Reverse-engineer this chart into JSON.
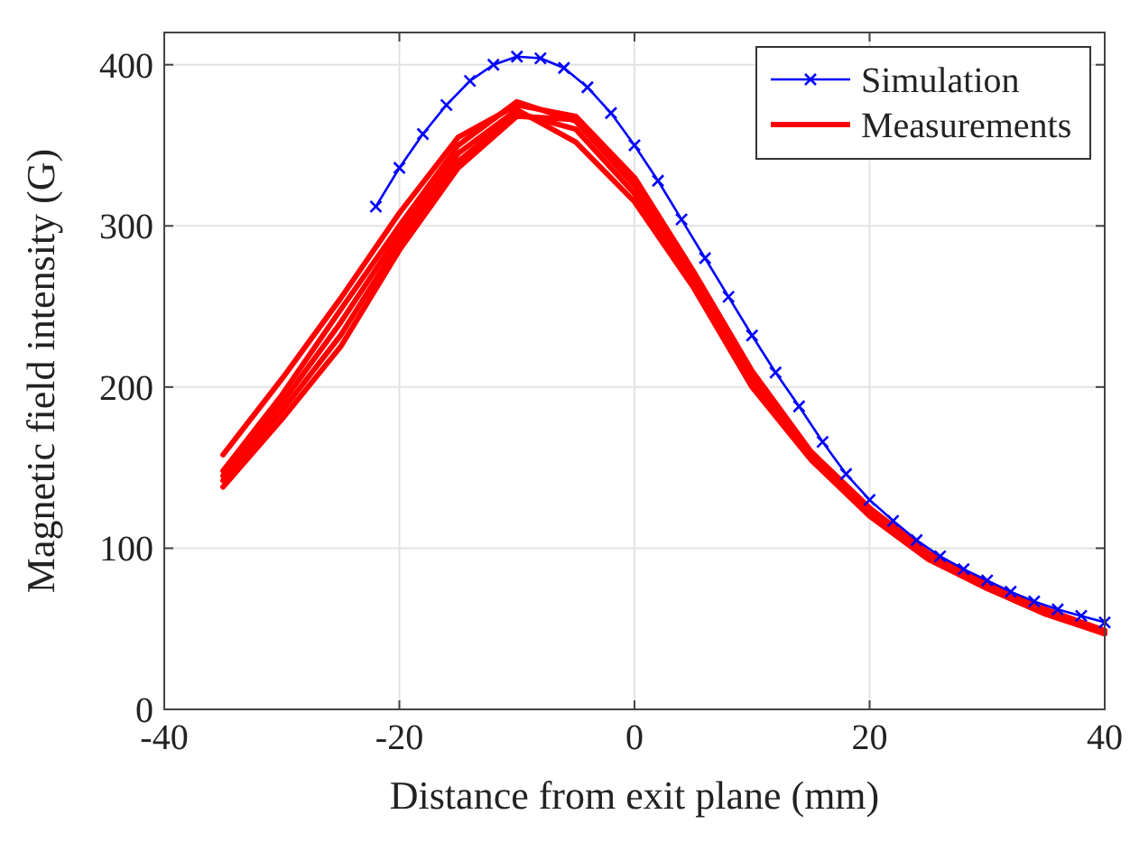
{
  "chart_data": {
    "type": "line",
    "xlabel": "Distance from exit plane (mm)",
    "ylabel": "Magnetic field intensity (G)",
    "xlim": [
      -40,
      40
    ],
    "ylim": [
      0,
      420
    ],
    "xticks": [
      -40,
      -20,
      0,
      20,
      40
    ],
    "yticks": [
      0,
      100,
      200,
      300,
      400
    ],
    "grid": true,
    "legend": "top right",
    "series": [
      {
        "name": "Simulation",
        "color": "#0000ff",
        "marker": "cross",
        "x": [
          -22,
          -20,
          -18,
          -16,
          -14,
          -12,
          -10,
          -8,
          -6,
          -4,
          -2,
          0,
          2,
          4,
          6,
          8,
          10,
          12,
          14,
          16,
          18,
          20,
          22,
          24,
          26,
          28,
          30,
          32,
          34,
          36,
          38,
          40
        ],
        "values": [
          312,
          336,
          357,
          375,
          390,
          400,
          405,
          404,
          398,
          386,
          370,
          350,
          328,
          304,
          280,
          256,
          232,
          209,
          188,
          166,
          146,
          130,
          117,
          105,
          95,
          87,
          80,
          73,
          67,
          62,
          58,
          54
        ]
      },
      {
        "name": "Measurements",
        "color": "#ff0000",
        "marker": "none",
        "x": [
          -35,
          -30,
          -25,
          -20,
          -15,
          -10,
          -5,
          0,
          5,
          10,
          15,
          20,
          25,
          30,
          35,
          40
        ],
        "values": [
          158,
          205,
          255,
          308,
          355,
          375,
          368,
          330,
          272,
          210,
          160,
          125,
          97,
          78,
          62,
          49
        ]
      },
      {
        "color": "#ff0000",
        "marker": "none",
        "x": [
          -35,
          -30,
          -25,
          -20,
          -15,
          -10,
          -5,
          0,
          5,
          10,
          15,
          20,
          25,
          30,
          35,
          40
        ],
        "values": [
          148,
          195,
          248,
          300,
          350,
          377,
          365,
          325,
          268,
          205,
          158,
          122,
          95,
          76,
          60,
          48
        ]
      },
      {
        "color": "#ff0000",
        "marker": "none",
        "x": [
          -35,
          -30,
          -25,
          -20,
          -15,
          -10,
          -5,
          0,
          5,
          10,
          15,
          20,
          25,
          30,
          35,
          40
        ],
        "values": [
          145,
          190,
          240,
          295,
          345,
          372,
          352,
          315,
          262,
          200,
          155,
          120,
          93,
          75,
          59,
          47
        ]
      },
      {
        "color": "#ff0000",
        "marker": "none",
        "x": [
          -35,
          -30,
          -25,
          -20,
          -15,
          -10,
          -5,
          0,
          5,
          10,
          15,
          20,
          25,
          30,
          35,
          40
        ],
        "values": [
          142,
          185,
          232,
          290,
          340,
          370,
          360,
          320,
          265,
          203,
          156,
          121,
          94,
          75,
          60,
          47
        ]
      },
      {
        "color": "#ff0000",
        "marker": "none",
        "x": [
          -35,
          -30,
          -25,
          -20,
          -15,
          -10,
          -5,
          0,
          5,
          10,
          15,
          20,
          25,
          30,
          35,
          40
        ],
        "values": [
          138,
          180,
          225,
          285,
          336,
          368,
          366,
          328,
          270,
          207,
          159,
          123,
          96,
          77,
          61,
          48
        ]
      }
    ]
  }
}
